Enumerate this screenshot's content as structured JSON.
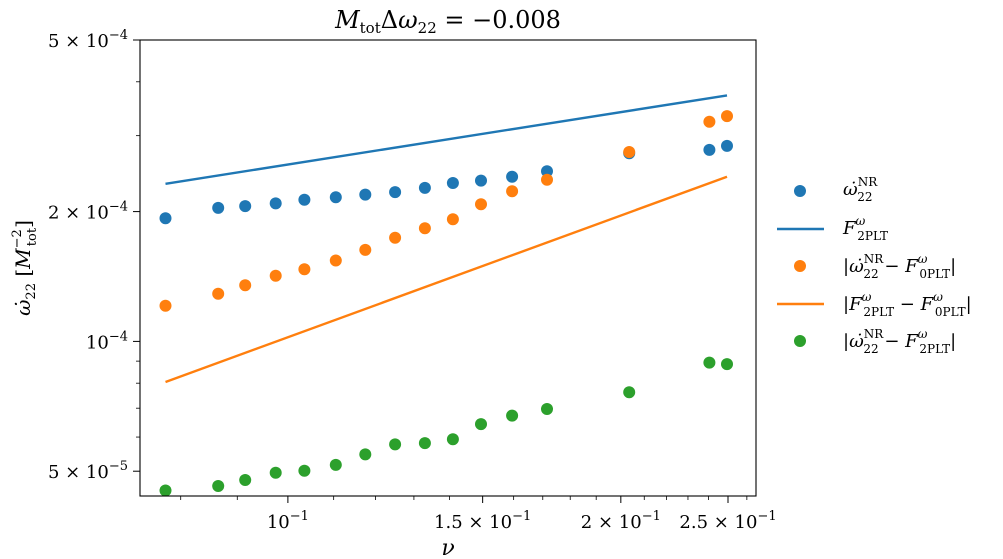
{
  "chart_data": {
    "type": "scatter",
    "title": "M_tot Δω_22 = −0.008",
    "xlabel": "ν",
    "ylabel": "ω̇_22 [M_tot^−2]",
    "xscale": "log",
    "yscale": "log",
    "xlim": [
      0.0735,
      0.265
    ],
    "ylim": [
      4.38e-05,
      0.0005
    ],
    "grid": false,
    "legend_position": "outside-right",
    "xticks": [
      {
        "value": 0.1,
        "label": "10^−1"
      },
      {
        "value": 0.15,
        "label": "1.5 × 10^−1"
      },
      {
        "value": 0.2,
        "label": "2 × 10^−1"
      },
      {
        "value": 0.25,
        "label": "2.5 × 10^−1"
      }
    ],
    "yticks": [
      {
        "value": 5e-05,
        "label": "5 × 10^−5"
      },
      {
        "value": 0.0001,
        "label": "10^−4"
      },
      {
        "value": 0.0002,
        "label": "2 × 10^−4"
      },
      {
        "value": 0.0005,
        "label": "5 × 10^−4"
      }
    ],
    "x": [
      0.0775,
      0.0865,
      0.0915,
      0.0975,
      0.1035,
      0.1105,
      0.1175,
      0.125,
      0.133,
      0.141,
      0.1495,
      0.1595,
      0.1715,
      0.2035,
      0.2405,
      0.2495
    ],
    "series": [
      {
        "name": "ω̇_22^NR",
        "kind": "scatter",
        "color": "#1f77b4",
        "values": [
          0.000193,
          0.000204,
          0.000206,
          0.000209,
          0.000213,
          0.000216,
          0.000219,
          0.000222,
          0.000227,
          0.000233,
          0.000236,
          0.000241,
          0.000248,
          0.000273,
          0.000278,
          0.000284
        ]
      },
      {
        "name": "F_2PLT^ω",
        "kind": "line",
        "color": "#1f77b4",
        "x": [
          0.0775,
          0.2495
        ],
        "values": [
          0.000232,
          0.000372
        ]
      },
      {
        "name": "|ω̇_22^NR − F_0PLT^ω|",
        "kind": "scatter",
        "color": "#ff7f0e",
        "values": [
          0.000121,
          0.000129,
          0.000135,
          0.000142,
          0.000147,
          0.000154,
          0.000163,
          0.000174,
          0.000183,
          0.000192,
          0.000208,
          0.000223,
          0.000237,
          0.000275,
          0.000323,
          0.000333
        ]
      },
      {
        "name": "|F_2PLT^ω − F_0PLT^ω|",
        "kind": "line",
        "color": "#ff7f0e",
        "x": [
          0.0775,
          0.2495
        ],
        "values": [
          8.05e-05,
          0.000241
        ]
      },
      {
        "name": "|ω̇_22^NR − F_2PLT^ω|",
        "kind": "scatter",
        "color": "#2ca02c",
        "values": [
          4.51e-05,
          4.62e-05,
          4.77e-05,
          4.96e-05,
          5.01e-05,
          5.17e-05,
          5.47e-05,
          5.77e-05,
          5.81e-05,
          5.93e-05,
          6.43e-05,
          6.73e-05,
          6.97e-05,
          7.62e-05,
          8.93e-05,
          8.86e-05
        ]
      }
    ]
  }
}
